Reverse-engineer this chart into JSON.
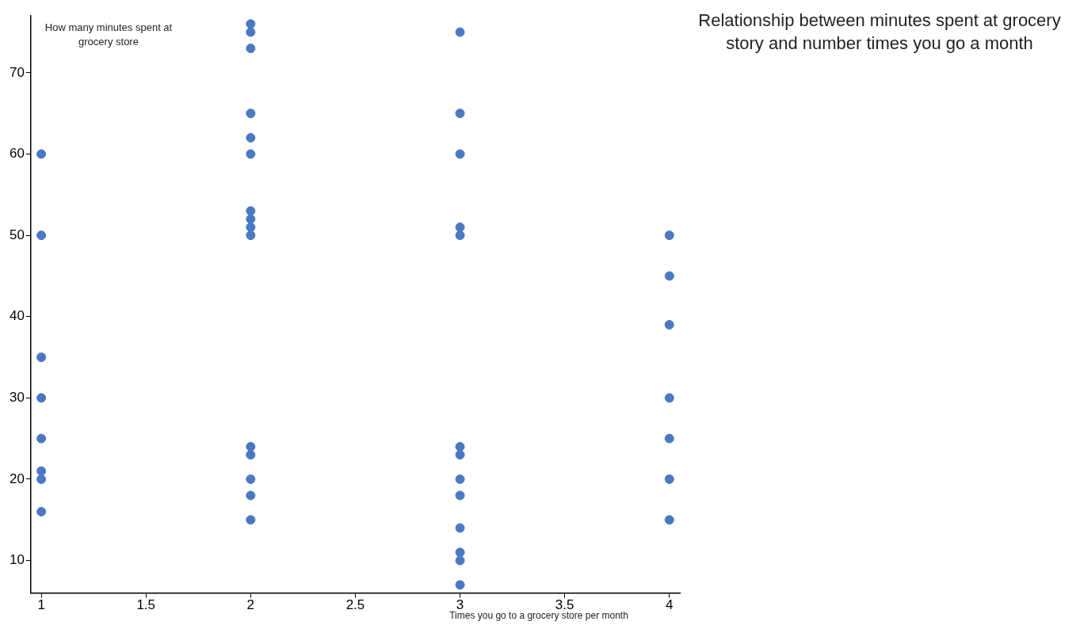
{
  "chart_data": {
    "type": "scatter",
    "title": "Relationship between minutes spent at grocery story and number times you go a month",
    "xlabel": "Times you go to a grocery store per month",
    "ylabel": "How many minutes spent at grocery store",
    "series": [
      {
        "color": "#4a78c2",
        "x": [
          1,
          1,
          1,
          1,
          1,
          1,
          1,
          1,
          2,
          2,
          2,
          2,
          2,
          2,
          2,
          2,
          2,
          2,
          2,
          2,
          2,
          2,
          2,
          3,
          3,
          3,
          3,
          3,
          3,
          3,
          3,
          3,
          3,
          3,
          3,
          3,
          4,
          4,
          4,
          4,
          4,
          4,
          4
        ],
        "values": [
          60,
          50,
          35,
          30,
          25,
          21,
          20,
          16,
          76,
          75,
          73,
          65,
          62,
          60,
          53,
          52,
          51,
          50,
          24,
          23,
          20,
          18,
          15,
          75,
          65,
          60,
          51,
          50,
          24,
          23,
          20,
          18,
          14,
          11,
          10,
          7,
          50,
          45,
          39,
          30,
          25,
          20,
          15
        ]
      }
    ],
    "xlim": [
      0.95,
      4.05
    ],
    "xticks": [
      1,
      1.5,
      2,
      2.5,
      3,
      3.5,
      4
    ],
    "ylim": [
      6,
      77
    ],
    "yticks": [
      10,
      20,
      30,
      40,
      50,
      60,
      70
    ],
    "grid": false,
    "legend": false,
    "marker": "circle"
  }
}
